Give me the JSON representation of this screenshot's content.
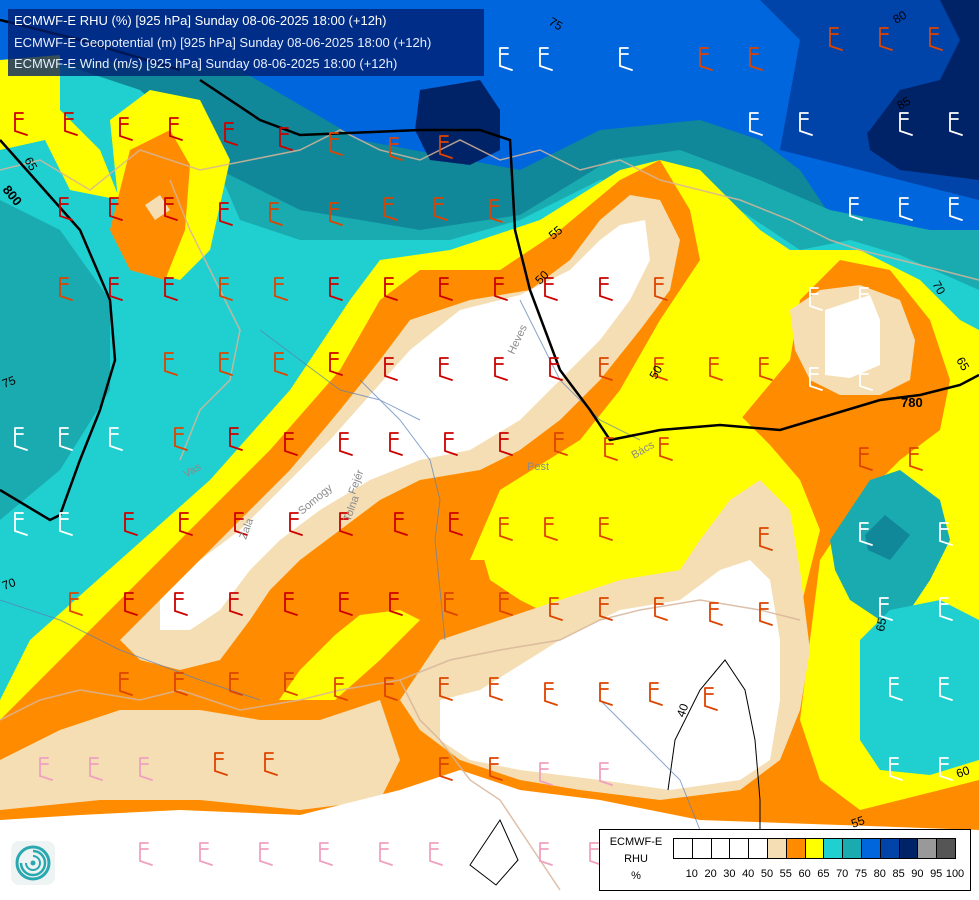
{
  "header": {
    "line1": "ECMWF-E RHU (%) [925 hPa] Sunday 08-06-2025 18:00 (+12h)",
    "line2": "ECMWF-E Geopotential (m) [925 hPa] Sunday 08-06-2025 18:00 (+12h)",
    "line3": "ECMWF-E Wind (m/s) [925 hPa] Sunday 08-06-2025 18:00 (+12h)"
  },
  "colors": {
    "c50": "#f5deb3",
    "c55": "#ff8c00",
    "c60": "#ffff00",
    "c65": "#20d0d0",
    "c70": "#1aabb0",
    "c75": "#118899",
    "c80": "#0066dd",
    "c85": "#0044aa",
    "c90": "#002266",
    "c95": "#999999",
    "c100": "#555555",
    "white": "#ffffff"
  },
  "legend": {
    "title_line1": "ECMWF-E",
    "title_line2": "RHU",
    "title_line3": "%",
    "swatch_colors": [
      "#ffffff",
      "#ffffff",
      "#ffffff",
      "#ffffff",
      "#ffffff",
      "#f5deb3",
      "#ff8c00",
      "#ffff00",
      "#20d0d0",
      "#1aabb0",
      "#0066dd",
      "#0044aa",
      "#002266",
      "#999999",
      "#555555"
    ],
    "ticks": [
      "10",
      "20",
      "30",
      "40",
      "50",
      "55",
      "60",
      "65",
      "70",
      "75",
      "80",
      "85",
      "90",
      "95",
      "100"
    ]
  },
  "contour_labels": [
    {
      "text": "75"
    },
    {
      "text": "80"
    },
    {
      "text": "85"
    },
    {
      "text": "65"
    },
    {
      "text": "70"
    },
    {
      "text": "65"
    },
    {
      "text": "55"
    },
    {
      "text": "50"
    },
    {
      "text": "50"
    },
    {
      "text": "75"
    },
    {
      "text": "70"
    },
    {
      "text": "65"
    },
    {
      "text": "60"
    },
    {
      "text": "55"
    },
    {
      "text": "40"
    }
  ],
  "geopotential_labels": [
    {
      "text": "800"
    },
    {
      "text": "780"
    }
  ],
  "place_labels": [
    {
      "text": "Zala"
    },
    {
      "text": "Somogy"
    },
    {
      "text": "Vas"
    },
    {
      "text": "Tolna"
    },
    {
      "text": "Fejér"
    },
    {
      "text": "Pest"
    },
    {
      "text": "Bács"
    },
    {
      "text": "Heves"
    }
  ],
  "logo": {
    "name": "ecmwf-logo"
  }
}
